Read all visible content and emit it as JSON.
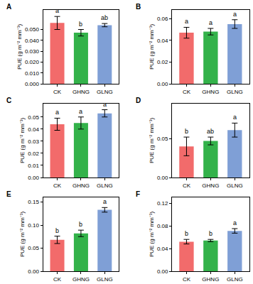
{
  "chart_data": [
    {
      "type": "bar",
      "title": "A",
      "y_label": "PUE (g m⁻² mm⁻¹)",
      "categories": [
        "CK",
        "GHNG",
        "GLNG"
      ],
      "values": [
        0.056,
        0.047,
        0.054
      ],
      "errors": [
        0.006,
        0.003,
        0.0015
      ],
      "annotations": [
        "a",
        "b",
        "ab"
      ],
      "colors": [
        "#f26b6b",
        "#33b24a",
        "#7f9fd6"
      ],
      "ylim": [
        0,
        0.068
      ],
      "yticks": [
        {
          "value": 0,
          "label": "0.000"
        },
        {
          "value": 0.01,
          "label": "0.010"
        },
        {
          "value": 0.02,
          "label": "0.020"
        },
        {
          "value": 0.03,
          "label": "0.030"
        },
        {
          "value": 0.04,
          "label": "0.040"
        },
        {
          "value": 0.05,
          "label": "0.050"
        }
      ],
      "grid": false
    },
    {
      "type": "bar",
      "title": "B",
      "y_label": "PUE (g m⁻² mm⁻¹)",
      "categories": [
        "CK",
        "GHNG",
        "GLNG"
      ],
      "values": [
        0.047,
        0.048,
        0.055
      ],
      "errors": [
        0.005,
        0.003,
        0.004
      ],
      "annotations": [
        "a",
        "a",
        "a"
      ],
      "colors": [
        "#f26b6b",
        "#33b24a",
        "#7f9fd6"
      ],
      "ylim": [
        0,
        0.068
      ],
      "yticks": [
        {
          "value": 0,
          "label": "0.00"
        },
        {
          "value": 0.02,
          "label": "0.02"
        },
        {
          "value": 0.04,
          "label": "0.04"
        },
        {
          "value": 0.06,
          "label": "0.06"
        }
      ],
      "grid": false
    },
    {
      "type": "bar",
      "title": "C",
      "y_label": "PUE (g m⁻² mm⁻¹)",
      "categories": [
        "CK",
        "GHNG",
        "GLNG"
      ],
      "values": [
        0.044,
        0.045,
        0.053
      ],
      "errors": [
        0.005,
        0.005,
        0.003
      ],
      "annotations": [
        "a",
        "a",
        "a"
      ],
      "colors": [
        "#f26b6b",
        "#33b24a",
        "#7f9fd6"
      ],
      "ylim": [
        0,
        0.061
      ],
      "yticks": [
        {
          "value": 0,
          "label": "0.00"
        },
        {
          "value": 0.01,
          "label": "0.01"
        },
        {
          "value": 0.02,
          "label": "0.02"
        },
        {
          "value": 0.03,
          "label": "0.03"
        },
        {
          "value": 0.04,
          "label": "0.04"
        },
        {
          "value": 0.05,
          "label": "0.05"
        }
      ],
      "grid": false
    },
    {
      "type": "bar",
      "title": "D",
      "y_label": "PUE (g m⁻² mm⁻¹)",
      "categories": [
        "CK",
        "GHNG",
        "GLNG"
      ],
      "values": [
        0.04,
        0.047,
        0.061
      ],
      "errors": [
        0.012,
        0.005,
        0.009
      ],
      "annotations": [
        "b",
        "ab",
        "a"
      ],
      "colors": [
        "#f26b6b",
        "#33b24a",
        "#7f9fd6"
      ],
      "ylim": [
        0,
        0.095
      ],
      "yticks": [
        {
          "value": 0,
          "label": "0.00"
        },
        {
          "value": 0.05,
          "label": "0.05"
        }
      ],
      "grid": false
    },
    {
      "type": "bar",
      "title": "E",
      "y_label": "PUE (g m⁻² mm⁻¹)",
      "categories": [
        "CK",
        "GHNG",
        "GLNG"
      ],
      "values": [
        0.068,
        0.082,
        0.133
      ],
      "errors": [
        0.008,
        0.007,
        0.005
      ],
      "annotations": [
        "b",
        "b",
        "a"
      ],
      "colors": [
        "#f26b6b",
        "#33b24a",
        "#7f9fd6"
      ],
      "ylim": [
        0,
        0.16
      ],
      "yticks": [
        {
          "value": 0,
          "label": "0.00"
        },
        {
          "value": 0.05,
          "label": "0.05"
        },
        {
          "value": 0.1,
          "label": "0.10"
        },
        {
          "value": 0.15,
          "label": "0.15"
        }
      ],
      "grid": false
    },
    {
      "type": "bar",
      "title": "F",
      "y_label": "PUE (g m⁻² mm⁻¹)",
      "categories": [
        "CK",
        "GHNG",
        "GLNG"
      ],
      "values": [
        0.052,
        0.054,
        0.071
      ],
      "errors": [
        0.004,
        0.002,
        0.004
      ],
      "annotations": [
        "b",
        "b",
        "a"
      ],
      "colors": [
        "#f26b6b",
        "#33b24a",
        "#7f9fd6"
      ],
      "ylim": [
        0,
        0.13
      ],
      "yticks": [
        {
          "value": 0,
          "label": "0.00"
        },
        {
          "value": 0.04,
          "label": "0.04"
        },
        {
          "value": 0.08,
          "label": "0.08"
        },
        {
          "value": 0.12,
          "label": "0.12"
        }
      ],
      "grid": false
    }
  ]
}
